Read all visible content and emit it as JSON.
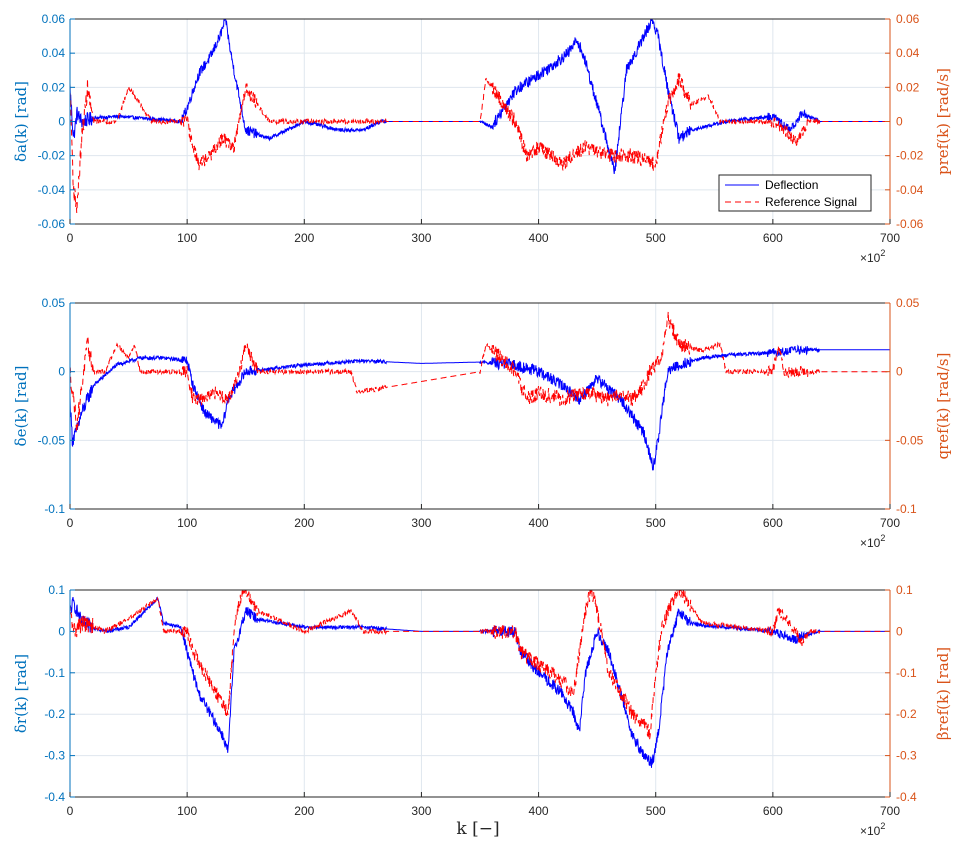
{
  "figure": {
    "xlabel": "k [−]",
    "x_multiplier": "×10",
    "x_multiplier_exp": "2",
    "legend": {
      "entries": [
        "Deflection",
        "Reference Signal"
      ],
      "placement": "inside-bottom-right of top panel"
    }
  },
  "colors": {
    "deflection": "#0000ff",
    "reference": "#ff0000",
    "left_axis": "#0072bd",
    "right_axis": "#d95319",
    "grid": "#dfe6ee"
  },
  "chart_data": [
    {
      "type": "line",
      "ylabel_left": "δa(k) [rad]",
      "ylabel_right": "pref(k) [rad/s]",
      "xlim": [
        0,
        700
      ],
      "ylim_left": [
        -0.06,
        0.06
      ],
      "ylim_right": [
        -0.06,
        0.06
      ],
      "xticks": [
        "0",
        "100",
        "200",
        "300",
        "400",
        "500",
        "600",
        "700"
      ],
      "yticks_left": [
        "-0.06",
        "-0.04",
        "-0.02",
        "0",
        "0.02",
        "0.04",
        "0.06"
      ],
      "yticks_right": [
        "-0.06",
        "-0.04",
        "-0.02",
        "0",
        "0.02",
        "0.04",
        "0.06"
      ],
      "grid": true,
      "series": [
        {
          "name": "Deflection",
          "style": "solid",
          "x": [
            0,
            3,
            6,
            10,
            20,
            40,
            60,
            80,
            95,
            100,
            105,
            110,
            120,
            128,
            133,
            136,
            140,
            150,
            170,
            200,
            230,
            250,
            265,
            290,
            350,
            360,
            380,
            395,
            410,
            425,
            433,
            440,
            450,
            465,
            475,
            490,
            497,
            502,
            510,
            520,
            530,
            560,
            600,
            615,
            625,
            640,
            700
          ],
          "values": [
            0.02,
            -0.01,
            0.005,
            0.0,
            0.002,
            0.003,
            0.002,
            0.001,
            0.0,
            0.008,
            0.018,
            0.028,
            0.038,
            0.05,
            0.06,
            0.045,
            0.03,
            -0.005,
            -0.01,
            0.0,
            -0.005,
            -0.005,
            0.0,
            0.0,
            0.0,
            -0.003,
            0.018,
            0.025,
            0.032,
            0.04,
            0.048,
            0.035,
            0.01,
            -0.03,
            0.03,
            0.05,
            0.06,
            0.05,
            0.02,
            -0.01,
            -0.005,
            0.0,
            0.003,
            -0.005,
            0.005,
            0.0,
            0.0
          ]
        },
        {
          "name": "Reference Signal",
          "style": "dashed",
          "x": [
            0,
            3,
            6,
            10,
            15,
            20,
            40,
            50,
            60,
            70,
            80,
            100,
            105,
            110,
            120,
            130,
            140,
            150,
            160,
            170,
            180,
            200,
            240,
            270,
            350,
            355,
            380,
            390,
            400,
            420,
            440,
            460,
            480,
            500,
            510,
            520,
            530,
            545,
            555,
            580,
            600,
            610,
            620,
            630,
            700
          ],
          "values": [
            0.02,
            -0.04,
            -0.05,
            -0.01,
            0.02,
            0.0,
            0.0,
            0.02,
            0.01,
            0.0,
            0.0,
            0.0,
            -0.015,
            -0.025,
            -0.02,
            -0.01,
            -0.015,
            0.02,
            0.01,
            0.0,
            0.0,
            0.0,
            0.0,
            0.0,
            0.0,
            0.025,
            0.0,
            -0.02,
            -0.015,
            -0.025,
            -0.015,
            -0.02,
            -0.02,
            -0.025,
            0.01,
            0.025,
            0.01,
            0.015,
            0.0,
            0.0,
            0.0,
            -0.005,
            -0.012,
            0.0,
            0.0
          ]
        }
      ]
    },
    {
      "type": "line",
      "ylabel_left": "δe(k) [rad]",
      "ylabel_right": "qref(k) [rad/s]",
      "xlim": [
        0,
        700
      ],
      "ylim_left": [
        -0.1,
        0.05
      ],
      "ylim_right": [
        -0.1,
        0.05
      ],
      "xticks": [
        "0",
        "100",
        "200",
        "300",
        "400",
        "500",
        "600",
        "700"
      ],
      "yticks_left": [
        "-0.1",
        "-0.05",
        "0",
        "0.05"
      ],
      "yticks_right": [
        "-0.1",
        "-0.05",
        "0",
        "0.05"
      ],
      "grid": true,
      "series": [
        {
          "name": "Deflection",
          "style": "solid",
          "x": [
            0,
            2,
            5,
            10,
            20,
            40,
            60,
            80,
            100,
            105,
            115,
            130,
            135,
            150,
            200,
            250,
            300,
            350,
            380,
            400,
            420,
            435,
            450,
            470,
            490,
            498,
            502,
            510,
            520,
            540,
            560,
            600,
            625,
            700
          ],
          "values": [
            -0.02,
            -0.05,
            -0.045,
            -0.03,
            -0.01,
            0.005,
            0.01,
            0.01,
            0.008,
            -0.01,
            -0.03,
            -0.04,
            -0.02,
            0.0,
            0.005,
            0.008,
            0.006,
            0.007,
            0.005,
            0.0,
            -0.01,
            -0.02,
            -0.005,
            -0.02,
            -0.045,
            -0.07,
            -0.05,
            0.0,
            0.005,
            0.01,
            0.012,
            0.014,
            0.016,
            0.016
          ]
        },
        {
          "name": "Reference Signal",
          "style": "dashed",
          "x": [
            0,
            3,
            6,
            10,
            15,
            20,
            30,
            40,
            50,
            55,
            60,
            100,
            105,
            115,
            125,
            135,
            145,
            150,
            160,
            170,
            240,
            245,
            350,
            355,
            380,
            390,
            400,
            420,
            440,
            460,
            470,
            480,
            490,
            495,
            505,
            510,
            520,
            540,
            555,
            560,
            600,
            605,
            610,
            700
          ],
          "values": [
            0.0,
            -0.02,
            -0.04,
            -0.01,
            0.02,
            0.0,
            0.0,
            0.02,
            0.01,
            0.02,
            0.0,
            0.0,
            -0.02,
            -0.02,
            -0.015,
            -0.02,
            0.0,
            0.02,
            0.0,
            0.0,
            0.0,
            -0.015,
            0.0,
            0.02,
            0.0,
            -0.02,
            -0.015,
            -0.02,
            -0.015,
            -0.02,
            -0.015,
            -0.02,
            -0.01,
            0.0,
            0.01,
            0.04,
            0.02,
            0.015,
            0.02,
            0.0,
            0.0,
            0.02,
            0.0,
            0.0
          ]
        }
      ]
    },
    {
      "type": "line",
      "ylabel_left": "δr(k) [rad]",
      "ylabel_right": "βref(k) [rad]",
      "xlim": [
        0,
        700
      ],
      "ylim_left": [
        -0.4,
        0.1
      ],
      "ylim_right": [
        -0.4,
        0.1
      ],
      "xticks": [
        "0",
        "100",
        "200",
        "300",
        "400",
        "500",
        "600",
        "700"
      ],
      "yticks_left": [
        "-0.4",
        "-0.3",
        "-0.2",
        "-0.1",
        "0",
        "0.1"
      ],
      "yticks_right": [
        "-0.4",
        "-0.3",
        "-0.2",
        "-0.1",
        "0",
        "0.1"
      ],
      "grid": true,
      "series": [
        {
          "name": "Deflection",
          "style": "solid",
          "x": [
            0,
            3,
            10,
            30,
            50,
            75,
            80,
            95,
            100,
            110,
            120,
            130,
            135,
            140,
            150,
            160,
            200,
            250,
            300,
            380,
            385,
            400,
            420,
            430,
            435,
            440,
            450,
            460,
            470,
            480,
            490,
            497,
            502,
            510,
            520,
            530,
            540,
            560,
            600,
            620,
            625,
            640,
            700
          ],
          "values": [
            0.05,
            0.07,
            0.02,
            0.0,
            0.01,
            0.08,
            0.02,
            0.01,
            -0.05,
            -0.15,
            -0.2,
            -0.25,
            -0.29,
            -0.05,
            0.05,
            0.03,
            0.01,
            0.01,
            0.0,
            0.0,
            -0.05,
            -0.1,
            -0.15,
            -0.2,
            -0.24,
            -0.1,
            0.0,
            -0.05,
            -0.15,
            -0.25,
            -0.3,
            -0.32,
            -0.25,
            -0.05,
            0.05,
            0.02,
            0.015,
            0.01,
            0.0,
            -0.02,
            -0.01,
            0.0,
            0.0
          ]
        },
        {
          "name": "Reference Signal",
          "style": "dashed",
          "x": [
            0,
            3,
            10,
            30,
            50,
            75,
            80,
            100,
            105,
            115,
            125,
            135,
            140,
            145,
            150,
            160,
            200,
            240,
            250,
            380,
            385,
            400,
            420,
            430,
            440,
            445,
            450,
            460,
            470,
            480,
            490,
            495,
            500,
            505,
            510,
            520,
            525,
            540,
            600,
            605,
            615,
            625,
            630,
            700
          ],
          "values": [
            0.05,
            0.0,
            0.02,
            0.0,
            0.03,
            0.08,
            0.0,
            0.0,
            -0.05,
            -0.1,
            -0.15,
            -0.2,
            0.0,
            0.08,
            0.1,
            0.05,
            0.0,
            0.05,
            0.0,
            0.0,
            -0.05,
            -0.08,
            -0.12,
            -0.15,
            0.05,
            0.1,
            0.05,
            -0.1,
            -0.15,
            -0.2,
            -0.22,
            -0.25,
            -0.1,
            0.0,
            0.05,
            0.1,
            0.08,
            0.02,
            0.0,
            0.05,
            0.02,
            -0.03,
            0.0,
            0.0
          ]
        }
      ]
    }
  ]
}
